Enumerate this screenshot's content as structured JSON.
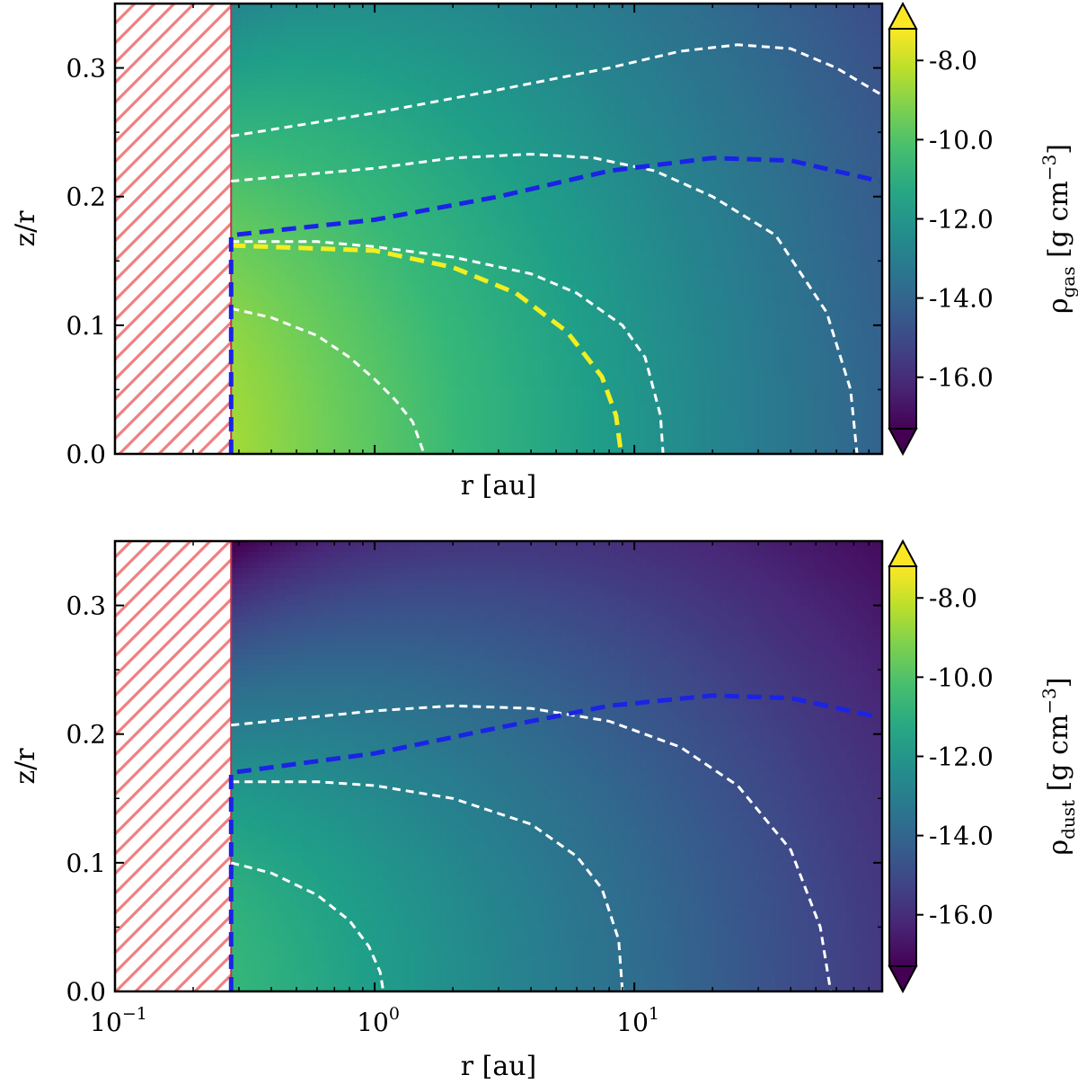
{
  "chart_data": [
    {
      "type": "heatmap",
      "panel": "top",
      "xlabel": "r [au]",
      "ylabel": "z/r",
      "xscale": "log",
      "xlim": [
        0.1,
        90
      ],
      "ylim": [
        0,
        0.35
      ],
      "yticks": [
        "0.0",
        "0.1",
        "0.2",
        "0.3"
      ],
      "xticks_shown": false,
      "colorbar": {
        "label": "ρ",
        "label_sub": "gas",
        "label_unit": " [g cm",
        "label_exp": "−3",
        "label_end": "]",
        "ticks": [
          "-8.0",
          "-10.0",
          "-12.0",
          "-14.0",
          "-16.0"
        ],
        "tick_values": [
          -8,
          -10,
          -12,
          -14,
          -16
        ],
        "range": [
          -17.3,
          -7.2
        ],
        "colormap": "viridis",
        "extend": "both"
      },
      "field": {
        "log_rho_mid_at_inner": -8.6,
        "r_inner": 0.28,
        "power": 2.2,
        "scale_height": 0.08,
        "scale_height_flaring": 0.04
      },
      "masked_region": {
        "x_from": 0.1,
        "x_to": 0.28,
        "hatch_color": "#f08080"
      },
      "contours": [
        {
          "style": "white-dashed",
          "points": [
            [
              0.28,
              0.113
            ],
            [
              0.4,
              0.106
            ],
            [
              0.6,
              0.092
            ],
            [
              0.8,
              0.075
            ],
            [
              1.0,
              0.058
            ],
            [
              1.2,
              0.042
            ],
            [
              1.4,
              0.025
            ],
            [
              1.55,
              0.0
            ]
          ]
        },
        {
          "style": "white-dashed",
          "points": [
            [
              0.28,
              0.165
            ],
            [
              0.6,
              0.165
            ],
            [
              1.0,
              0.161
            ],
            [
              2.0,
              0.153
            ],
            [
              4.0,
              0.14
            ],
            [
              6.0,
              0.125
            ],
            [
              9.0,
              0.1
            ],
            [
              11.0,
              0.075
            ],
            [
              12.6,
              0.03
            ],
            [
              12.9,
              0.0
            ]
          ]
        },
        {
          "style": "white-dashed",
          "points": [
            [
              0.28,
              0.212
            ],
            [
              1.0,
              0.222
            ],
            [
              2.0,
              0.23
            ],
            [
              4.0,
              0.233
            ],
            [
              7.0,
              0.23
            ],
            [
              12.0,
              0.22
            ],
            [
              20.0,
              0.2
            ],
            [
              35.0,
              0.17
            ],
            [
              55.0,
              0.11
            ],
            [
              68.0,
              0.05
            ],
            [
              72.0,
              0.0
            ]
          ]
        },
        {
          "style": "white-dashed",
          "points": [
            [
              0.28,
              0.247
            ],
            [
              1.0,
              0.265
            ],
            [
              3.0,
              0.283
            ],
            [
              8.0,
              0.3
            ],
            [
              15.0,
              0.313
            ],
            [
              25.0,
              0.318
            ],
            [
              40.0,
              0.315
            ],
            [
              60.0,
              0.3
            ],
            [
              88.0,
              0.28
            ]
          ]
        },
        {
          "style": "yellow-dashed",
          "points": [
            [
              0.28,
              0.162
            ],
            [
              1.0,
              0.158
            ],
            [
              2.0,
              0.145
            ],
            [
              3.5,
              0.125
            ],
            [
              5.5,
              0.095
            ],
            [
              7.5,
              0.06
            ],
            [
              8.5,
              0.03
            ],
            [
              8.9,
              0.0
            ]
          ]
        },
        {
          "style": "blue-dashed",
          "points": [
            [
              0.28,
              0.0
            ],
            [
              0.28,
              0.17
            ],
            [
              1.0,
              0.182
            ],
            [
              3.0,
              0.2
            ],
            [
              8.0,
              0.22
            ],
            [
              20.0,
              0.23
            ],
            [
              40.0,
              0.228
            ],
            [
              88.0,
              0.212
            ]
          ]
        }
      ]
    },
    {
      "type": "heatmap",
      "panel": "bottom",
      "xlabel": "r [au]",
      "ylabel": "z/r",
      "xscale": "log",
      "xlim": [
        0.1,
        90
      ],
      "ylim": [
        0,
        0.35
      ],
      "yticks": [
        "0.0",
        "0.1",
        "0.2",
        "0.3"
      ],
      "xticks_shown": true,
      "xtick_values": [
        0.1,
        1,
        10
      ],
      "xtick_labels": [
        {
          "base": "10",
          "exp": "−1"
        },
        {
          "base": "10",
          "exp": "0"
        },
        {
          "base": "10",
          "exp": "1"
        }
      ],
      "colorbar": {
        "label": "ρ",
        "label_sub": "dust",
        "label_unit": " [g cm",
        "label_exp": "−3",
        "label_end": "]",
        "ticks": [
          "-8.0",
          "-10.0",
          "-12.0",
          "-14.0",
          "-16.0"
        ],
        "tick_values": [
          -8,
          -10,
          -12,
          -14,
          -16
        ],
        "range": [
          -17.3,
          -7.2
        ],
        "colormap": "viridis",
        "extend": "both"
      },
      "field": {
        "log_rho_mid_at_inner": -10.6,
        "r_inner": 0.28,
        "power": 2.0,
        "scale_height": 0.062,
        "scale_height_flaring": 0.03
      },
      "masked_region": {
        "x_from": 0.1,
        "x_to": 0.28,
        "hatch_color": "#f08080"
      },
      "contours": [
        {
          "style": "white-dashed",
          "points": [
            [
              0.28,
              0.1
            ],
            [
              0.4,
              0.092
            ],
            [
              0.6,
              0.075
            ],
            [
              0.8,
              0.055
            ],
            [
              0.95,
              0.035
            ],
            [
              1.05,
              0.015
            ],
            [
              1.08,
              0.0
            ]
          ]
        },
        {
          "style": "white-dashed",
          "points": [
            [
              0.28,
              0.163
            ],
            [
              0.6,
              0.163
            ],
            [
              1.0,
              0.16
            ],
            [
              2.0,
              0.15
            ],
            [
              4.0,
              0.13
            ],
            [
              6.0,
              0.105
            ],
            [
              7.5,
              0.08
            ],
            [
              8.7,
              0.04
            ],
            [
              9.0,
              0.0
            ]
          ]
        },
        {
          "style": "white-dashed",
          "points": [
            [
              0.28,
              0.207
            ],
            [
              1.0,
              0.218
            ],
            [
              2.0,
              0.222
            ],
            [
              4.0,
              0.22
            ],
            [
              8.0,
              0.21
            ],
            [
              15.0,
              0.19
            ],
            [
              25.0,
              0.16
            ],
            [
              40.0,
              0.11
            ],
            [
              52.0,
              0.05
            ],
            [
              57.0,
              0.0
            ]
          ]
        },
        {
          "style": "blue-dashed",
          "points": [
            [
              0.28,
              0.0
            ],
            [
              0.28,
              0.17
            ],
            [
              1.0,
              0.185
            ],
            [
              3.0,
              0.205
            ],
            [
              8.0,
              0.222
            ],
            [
              20.0,
              0.23
            ],
            [
              40.0,
              0.228
            ],
            [
              88.0,
              0.213
            ]
          ]
        }
      ]
    }
  ]
}
